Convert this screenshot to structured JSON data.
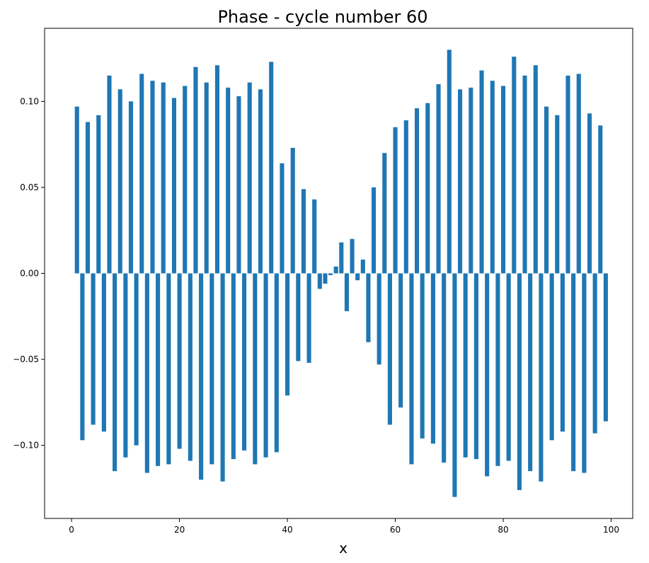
{
  "chart_data": {
    "type": "bar",
    "title": "Phase - cycle number 60",
    "xlabel": "x",
    "ylabel": "",
    "xlim": [
      -5,
      104
    ],
    "ylim": [
      -0.1425,
      0.1425
    ],
    "xticks": [
      0,
      20,
      40,
      60,
      80,
      100
    ],
    "xtick_labels": [
      "0",
      "20",
      "40",
      "60",
      "80",
      "100"
    ],
    "yticks": [
      -0.1,
      -0.05,
      0.0,
      0.05,
      0.1
    ],
    "ytick_labels": [
      "−0.10",
      "−0.05",
      "0.00",
      "0.05",
      "0.10"
    ],
    "grid": false,
    "bar_width": 0.8,
    "color": "#1f77b4",
    "x": [
      1,
      2,
      3,
      4,
      5,
      6,
      7,
      8,
      9,
      10,
      11,
      12,
      13,
      14,
      15,
      16,
      17,
      18,
      19,
      20,
      21,
      22,
      23,
      24,
      25,
      26,
      27,
      28,
      29,
      30,
      31,
      32,
      33,
      34,
      35,
      36,
      37,
      38,
      39,
      40,
      41,
      42,
      43,
      44,
      45,
      46,
      47,
      48,
      49,
      50,
      51,
      52,
      53,
      54,
      55,
      56,
      57,
      58,
      59,
      60,
      61,
      62,
      63,
      64,
      65,
      66,
      67,
      68,
      69,
      70,
      71,
      72,
      73,
      74,
      75,
      76,
      77,
      78,
      79,
      80,
      81,
      82,
      83,
      84,
      85,
      86,
      87,
      88,
      89,
      90,
      91,
      92,
      93,
      94,
      95,
      96,
      97,
      98,
      99
    ],
    "values": [
      0.097,
      -0.097,
      0.088,
      -0.088,
      0.092,
      -0.092,
      0.115,
      -0.115,
      0.107,
      -0.107,
      0.1,
      -0.1,
      0.116,
      -0.116,
      0.112,
      -0.112,
      0.111,
      -0.111,
      0.102,
      -0.102,
      0.109,
      -0.109,
      0.12,
      -0.12,
      0.111,
      -0.111,
      0.121,
      -0.121,
      0.108,
      -0.108,
      0.103,
      -0.103,
      0.111,
      -0.111,
      0.107,
      -0.107,
      0.123,
      -0.104,
      0.064,
      -0.071,
      0.073,
      -0.051,
      0.049,
      -0.052,
      0.043,
      -0.009,
      -0.006,
      -0.001,
      0.004,
      0.018,
      -0.022,
      0.02,
      -0.004,
      0.008,
      -0.04,
      0.05,
      -0.053,
      0.07,
      -0.088,
      0.085,
      -0.078,
      0.089,
      -0.111,
      0.096,
      -0.096,
      0.099,
      -0.099,
      0.11,
      -0.11,
      0.13,
      -0.13,
      0.107,
      -0.107,
      0.108,
      -0.108,
      0.118,
      -0.118,
      0.112,
      -0.112,
      0.109,
      -0.109,
      0.126,
      -0.126,
      0.115,
      -0.115,
      0.121,
      -0.121,
      0.097,
      -0.097,
      0.092,
      -0.092,
      0.115,
      -0.115,
      0.116,
      -0.116,
      0.093,
      -0.093,
      0.086,
      -0.086
    ]
  }
}
